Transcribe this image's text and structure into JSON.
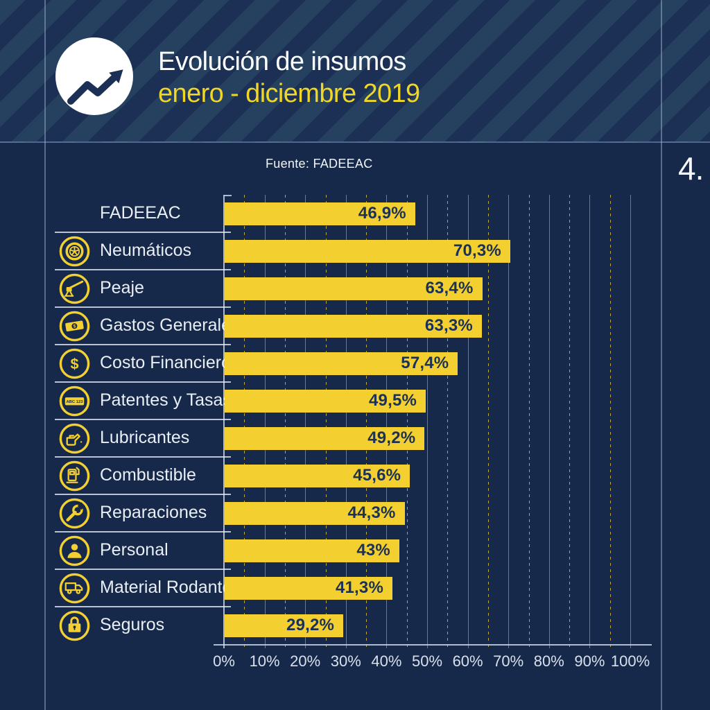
{
  "page_number": "4.",
  "header": {
    "title": "Evolución de insumos",
    "subtitle": "enero - diciembre 2019",
    "logo_icon": "trend-up-arrow-icon"
  },
  "source": {
    "label": "Fuente: FADEEAC"
  },
  "colors": {
    "background": "#16294A",
    "stripe_light": "#25415F",
    "stripe_dark": "#1B3054",
    "bar_yellow": "#F3CF2F",
    "subtitle_yellow": "#F0D627",
    "value_text_navy": "#1B3156",
    "label_text": "#EAEEF5",
    "axis_text": "#D9E0EB",
    "white": "#FFFFFF"
  },
  "chart_data": {
    "type": "bar",
    "orientation": "horizontal",
    "title": "Evolución de insumos enero - diciembre 2019",
    "source": "Fuente: FADEEAC",
    "categories": [
      "FADEEAC",
      "Neumáticos",
      "Peaje",
      "Gastos Generales",
      "Costo Financiero",
      "Patentes y Tasas",
      "Lubricantes",
      "Combustible",
      "Reparaciones",
      "Personal",
      "Material Rodante",
      "Seguros"
    ],
    "values": [
      46.9,
      70.3,
      63.4,
      63.3,
      57.4,
      49.5,
      49.2,
      45.6,
      44.3,
      43,
      41.3,
      29.2
    ],
    "value_labels": [
      "46,9%",
      "70,3%",
      "63,4%",
      "63,3%",
      "57,4%",
      "49,5%",
      "49,2%",
      "45,6%",
      "44,3%",
      "43%",
      "41,3%",
      "29,2%"
    ],
    "icons": [
      null,
      "tire-icon",
      "toll-barrier-icon",
      "banknote-icon",
      "dollar-icon",
      "license-plate-icon",
      "oil-can-icon",
      "fuel-pump-icon",
      "wrench-icon",
      "person-icon",
      "truck-icon",
      "padlock-icon"
    ],
    "license_plate_text": "ABC 123",
    "x_axis": {
      "ticks": [
        "0%",
        "10%",
        "20%",
        "30%",
        "40%",
        "50%",
        "60%",
        "70%",
        "80%",
        "90%",
        "100%"
      ],
      "min": 0,
      "max": 100,
      "major_step": 10,
      "minor_step": 5
    },
    "gridlines": {
      "major": "solid",
      "minor": "dashed-yellow",
      "grid_on": true
    },
    "legend": "none",
    "bar_color": "#F3CF2F"
  }
}
